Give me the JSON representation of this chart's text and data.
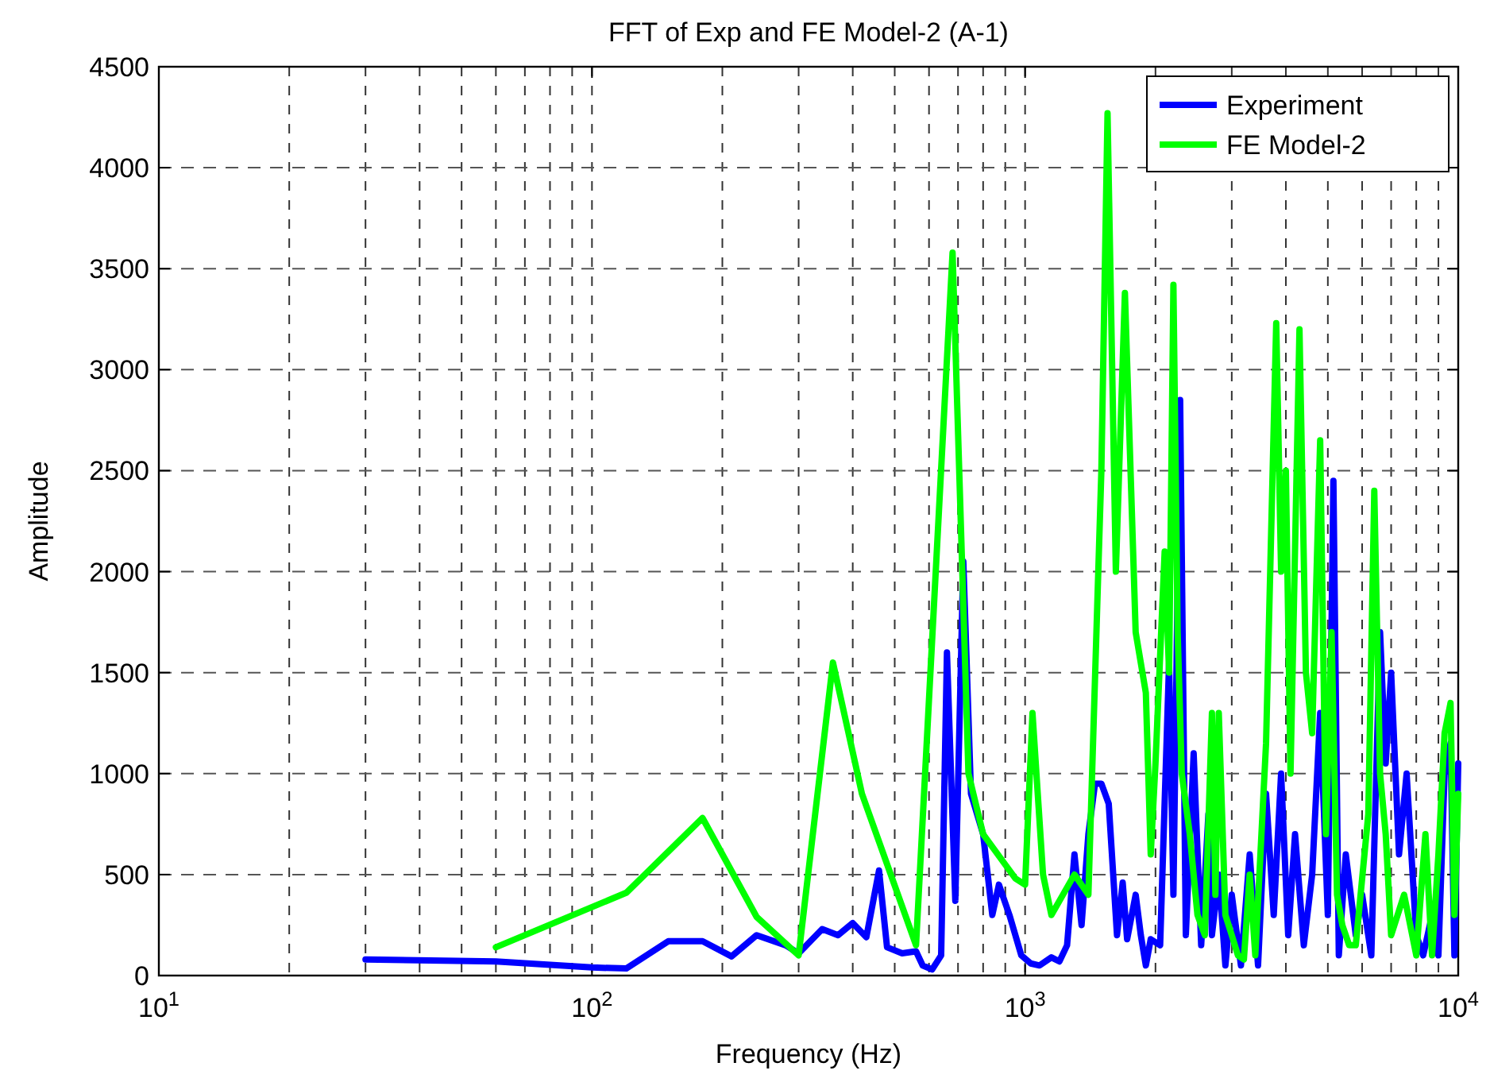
{
  "chart_data": {
    "type": "line",
    "title": "FFT of Exp and FE Model-2 (A-1)",
    "xlabel": "Frequency (Hz)",
    "ylabel": "Amplitude",
    "log": "x",
    "grid": true,
    "legend": "top right",
    "xlim": [
      10,
      10000
    ],
    "ylim": [
      0,
      4500
    ],
    "xticks": [
      {
        "value": 10,
        "label": "10$^{1}$"
      },
      {
        "value": 100,
        "label": "10$^{2}$"
      },
      {
        "value": 1000,
        "label": "10$^{3}$"
      },
      {
        "value": 10000,
        "label": "10$^{4}$"
      }
    ],
    "yticks": [
      0,
      500,
      1000,
      1500,
      2000,
      2500,
      3000,
      3500,
      4000,
      4500
    ],
    "series": [
      {
        "name": "Experiment",
        "color": "#0000ff",
        "x": [
          30,
          60,
          100,
          120,
          150,
          180,
          210,
          240,
          280,
          300,
          340,
          370,
          400,
          430,
          460,
          480,
          520,
          560,
          580,
          610,
          640,
          660,
          690,
          720,
          750,
          800,
          840,
          870,
          920,
          980,
          1030,
          1080,
          1150,
          1200,
          1250,
          1300,
          1350,
          1400,
          1450,
          1500,
          1560,
          1630,
          1680,
          1720,
          1800,
          1850,
          1900,
          1950,
          2050,
          2150,
          2200,
          2280,
          2350,
          2450,
          2550,
          2650,
          2700,
          2800,
          2900,
          3000,
          3150,
          3300,
          3450,
          3600,
          3750,
          3900,
          4050,
          4200,
          4400,
          4600,
          4800,
          5000,
          5150,
          5300,
          5500,
          5800,
          6000,
          6300,
          6600,
          6800,
          7000,
          7300,
          7600,
          8000,
          8300,
          8700,
          9000,
          9300,
          9600,
          9800,
          10000
        ],
        "values": [
          80,
          70,
          40,
          35,
          170,
          170,
          95,
          200,
          150,
          110,
          230,
          200,
          260,
          190,
          520,
          140,
          110,
          120,
          50,
          30,
          100,
          1600,
          370,
          2050,
          900,
          700,
          300,
          450,
          300,
          100,
          60,
          50,
          90,
          70,
          150,
          600,
          250,
          700,
          950,
          950,
          850,
          200,
          460,
          180,
          400,
          200,
          50,
          180,
          150,
          1550,
          400,
          2850,
          200,
          1100,
          150,
          800,
          200,
          500,
          50,
          400,
          50,
          600,
          50,
          900,
          300,
          1000,
          200,
          700,
          150,
          500,
          1300,
          300,
          2450,
          100,
          600,
          200,
          400,
          100,
          1700,
          1050,
          1500,
          600,
          1000,
          200,
          100,
          300,
          100,
          1000,
          1150,
          100,
          1050
        ]
      },
      {
        "name": "FE Model-2",
        "color": "#00ff00",
        "x": [
          60,
          120,
          180,
          240,
          300,
          360,
          420,
          560,
          680,
          740,
          800,
          950,
          1000,
          1040,
          1100,
          1150,
          1300,
          1400,
          1500,
          1550,
          1620,
          1700,
          1800,
          1900,
          1950,
          2000,
          2100,
          2150,
          2200,
          2250,
          2300,
          2400,
          2500,
          2600,
          2700,
          2750,
          2800,
          2900,
          3000,
          3100,
          3200,
          3300,
          3400,
          3600,
          3800,
          3900,
          4000,
          4100,
          4300,
          4450,
          4600,
          4800,
          4950,
          5100,
          5250,
          5400,
          5600,
          5800,
          6200,
          6400,
          6600,
          6800,
          7000,
          7500,
          8000,
          8400,
          8700,
          9000,
          9300,
          9600,
          9800,
          10000
        ],
        "values": [
          140,
          410,
          780,
          290,
          100,
          1550,
          900,
          150,
          3580,
          1000,
          700,
          480,
          450,
          1300,
          500,
          300,
          500,
          400,
          2500,
          4270,
          2000,
          3380,
          1700,
          1400,
          600,
          1050,
          2100,
          1500,
          3420,
          1700,
          1000,
          700,
          300,
          200,
          1300,
          400,
          1300,
          300,
          200,
          100,
          80,
          500,
          100,
          1150,
          3230,
          2000,
          2500,
          1000,
          3200,
          1500,
          1200,
          2650,
          700,
          1700,
          400,
          250,
          150,
          150,
          800,
          2400,
          1000,
          700,
          200,
          400,
          100,
          700,
          100,
          600,
          1200,
          1350,
          300,
          900
        ]
      }
    ]
  }
}
